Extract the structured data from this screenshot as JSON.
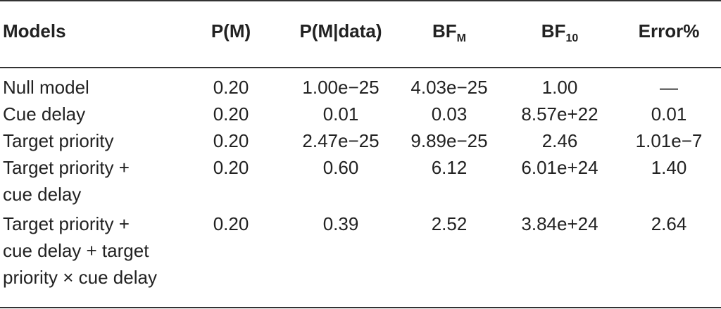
{
  "table": {
    "headers": {
      "models": "Models",
      "pm": "P(M)",
      "pm_data": "P(M|data)",
      "bfm_main": "BF",
      "bfm_sub": "M",
      "bf10_main": "BF",
      "bf10_sub": "10",
      "error": "Error%"
    },
    "rows": [
      {
        "model_lines": [
          "Null model"
        ],
        "pm": "0.20",
        "pm_data": "1.00e−25",
        "bfm": "4.03e−25",
        "bf10": "1.00",
        "error": "—"
      },
      {
        "model_lines": [
          "Cue delay"
        ],
        "pm": "0.20",
        "pm_data": "0.01",
        "bfm": "0.03",
        "bf10": "8.57e+22",
        "error": "0.01"
      },
      {
        "model_lines": [
          "Target priority"
        ],
        "pm": "0.20",
        "pm_data": "2.47e−25",
        "bfm": "9.89e−25",
        "bf10": "2.46",
        "error": "1.01e−7"
      },
      {
        "model_lines": [
          "Target priority +",
          "cue delay"
        ],
        "pm": "0.20",
        "pm_data": "0.60",
        "bfm": "6.12",
        "bf10": "6.01e+24",
        "error": "1.40"
      },
      {
        "model_lines": [
          "Target priority +",
          "cue delay + target",
          "priority × cue delay"
        ],
        "pm": "0.20",
        "pm_data": "0.39",
        "bfm": "2.52",
        "bf10": "3.84e+24",
        "error": "2.64"
      }
    ]
  }
}
